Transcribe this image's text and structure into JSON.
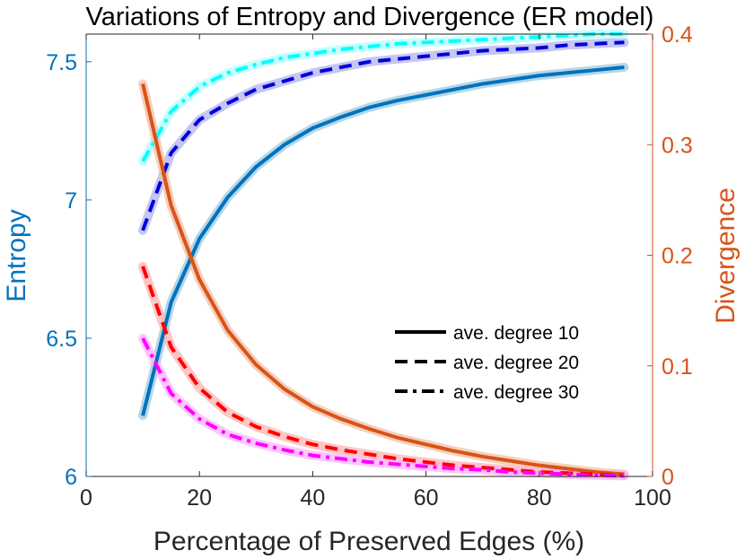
{
  "chart_data": {
    "type": "line",
    "title": "Variations of Entropy and Divergence (ER model)",
    "xlabel": "Percentage of Preserved Edges (%)",
    "ylabel_left": "Entropy",
    "ylabel_right": "Divergence",
    "xlim": [
      0,
      100
    ],
    "ylim_left": [
      6,
      7.6
    ],
    "ylim_right": [
      0,
      0.4
    ],
    "x_ticks": [
      0,
      20,
      40,
      60,
      80,
      100
    ],
    "y_left_ticks": [
      6,
      6.5,
      7,
      7.5
    ],
    "y_left_tick_labels": [
      "6",
      "6.5",
      "7",
      "7.5"
    ],
    "y_right_ticks": [
      0,
      0.1,
      0.2,
      0.3,
      0.4
    ],
    "y_right_tick_labels": [
      "0",
      "0.1",
      "0.2",
      "0.3",
      "0.4"
    ],
    "colors": {
      "left_axis": "#0072BD",
      "right_axis": "#D95319"
    },
    "x": [
      10,
      15,
      20,
      25,
      30,
      35,
      40,
      45,
      50,
      55,
      60,
      65,
      70,
      75,
      80,
      85,
      90,
      95
    ],
    "series": [
      {
        "name": "Entropy ave. degree 10",
        "axis": "left",
        "style": "solid",
        "color": "#0072BD",
        "band": "#9ecae1",
        "values": [
          6.22,
          6.63,
          6.86,
          7.01,
          7.12,
          7.2,
          7.26,
          7.3,
          7.335,
          7.36,
          7.38,
          7.4,
          7.42,
          7.435,
          7.45,
          7.46,
          7.47,
          7.48
        ]
      },
      {
        "name": "Entropy ave. degree 20",
        "axis": "left",
        "style": "dash",
        "color": "#0000DD",
        "band": "#b3b3f0",
        "values": [
          6.89,
          7.17,
          7.29,
          7.35,
          7.4,
          7.43,
          7.46,
          7.48,
          7.5,
          7.51,
          7.52,
          7.53,
          7.54,
          7.545,
          7.55,
          7.56,
          7.565,
          7.57
        ]
      },
      {
        "name": "Entropy ave. degree 30",
        "axis": "left",
        "style": "dashdot",
        "color": "#00FFFF",
        "band": "#b3ffff",
        "values": [
          7.14,
          7.32,
          7.41,
          7.46,
          7.49,
          7.515,
          7.53,
          7.545,
          7.555,
          7.565,
          7.57,
          7.575,
          7.58,
          7.585,
          7.59,
          7.595,
          7.6,
          7.6
        ]
      },
      {
        "name": "Divergence ave. degree 10",
        "axis": "right",
        "style": "solid",
        "color": "#D95319",
        "band": "#f2c0a6",
        "values": [
          0.355,
          0.245,
          0.178,
          0.132,
          0.101,
          0.079,
          0.063,
          0.052,
          0.043,
          0.035,
          0.029,
          0.023,
          0.018,
          0.014,
          0.01,
          0.007,
          0.004,
          0.002
        ]
      },
      {
        "name": "Divergence ave. degree 20",
        "axis": "right",
        "style": "dash",
        "color": "#FF0000",
        "band": "#ffb3b3",
        "values": [
          0.19,
          0.117,
          0.08,
          0.058,
          0.045,
          0.036,
          0.029,
          0.024,
          0.02,
          0.016,
          0.013,
          0.01,
          0.008,
          0.006,
          0.004,
          0.003,
          0.002,
          0.001
        ]
      },
      {
        "name": "Divergence ave. degree 30",
        "axis": "right",
        "style": "dashdot",
        "color": "#FF00FF",
        "band": "#ffb3ff",
        "values": [
          0.125,
          0.075,
          0.052,
          0.038,
          0.03,
          0.024,
          0.019,
          0.016,
          0.013,
          0.011,
          0.009,
          0.007,
          0.006,
          0.004,
          0.003,
          0.002,
          0.001,
          0.0005
        ]
      }
    ],
    "legend": {
      "position": "center-right",
      "entries": [
        {
          "label": "ave. degree 10",
          "style": "solid"
        },
        {
          "label": "ave. degree 20",
          "style": "dash"
        },
        {
          "label": "ave. degree 30",
          "style": "dashdot"
        }
      ]
    }
  }
}
